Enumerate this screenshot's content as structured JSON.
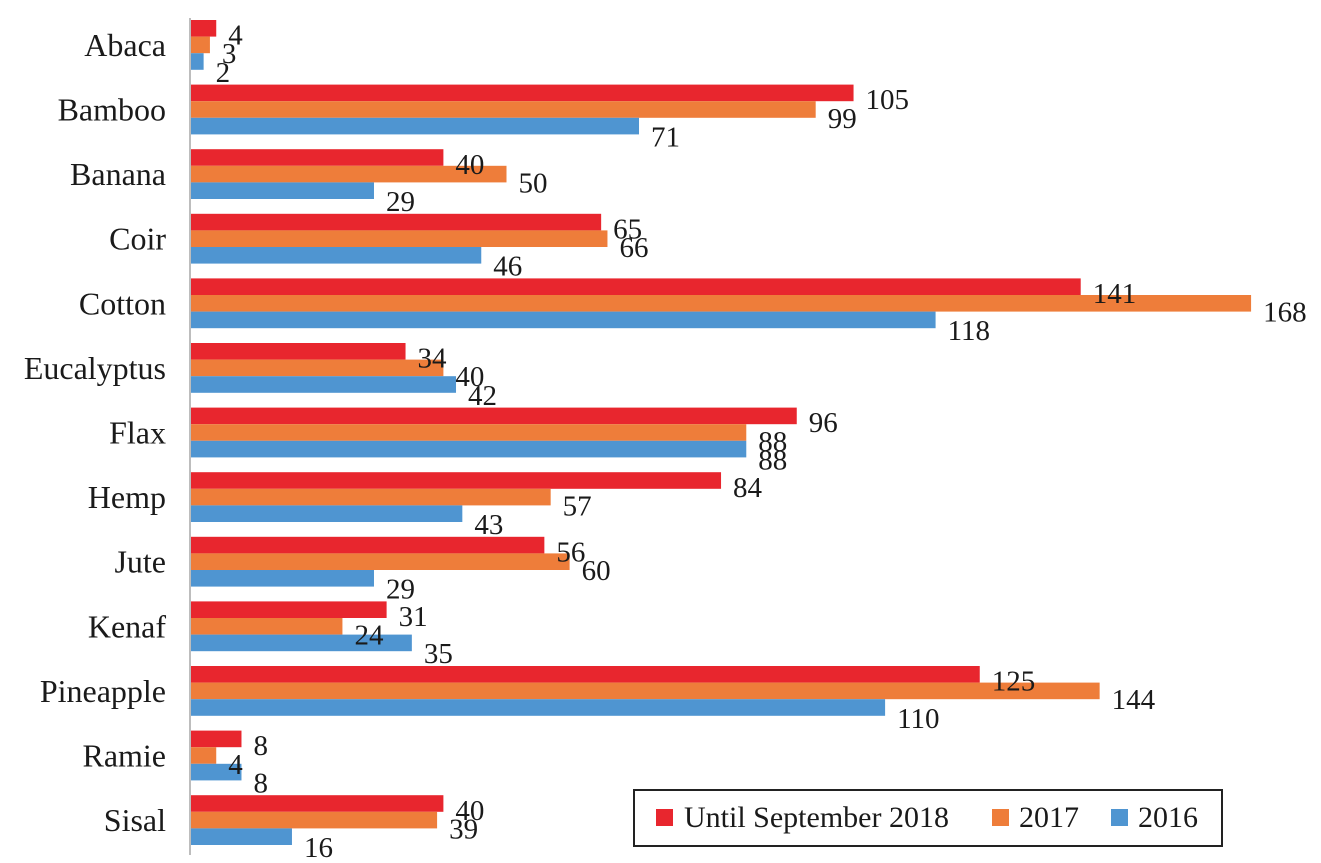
{
  "chart_data": {
    "type": "bar",
    "orientation": "horizontal",
    "categories": [
      "Abaca",
      "Bamboo",
      "Banana",
      "Coir",
      "Cotton",
      "Eucalyptus",
      "Flax",
      "Hemp",
      "Jute",
      "Kenaf",
      "Pineapple",
      "Ramie",
      "Sisal"
    ],
    "series": [
      {
        "name": "Until September 2018",
        "color": "#e8262e",
        "values": [
          4,
          105,
          40,
          65,
          141,
          34,
          96,
          84,
          56,
          31,
          125,
          8,
          40
        ]
      },
      {
        "name": "2017",
        "color": "#ee7d3a",
        "values": [
          3,
          99,
          50,
          66,
          168,
          40,
          88,
          57,
          60,
          24,
          144,
          4,
          39
        ]
      },
      {
        "name": "2016",
        "color": "#4f95d1",
        "values": [
          2,
          71,
          29,
          46,
          118,
          42,
          88,
          43,
          29,
          35,
          110,
          8,
          16
        ]
      }
    ],
    "xlim": [
      0,
      170
    ],
    "title": "",
    "xlabel": "",
    "ylabel": "",
    "data_labels": true,
    "grid": false,
    "legend_position": "bottom-right"
  }
}
